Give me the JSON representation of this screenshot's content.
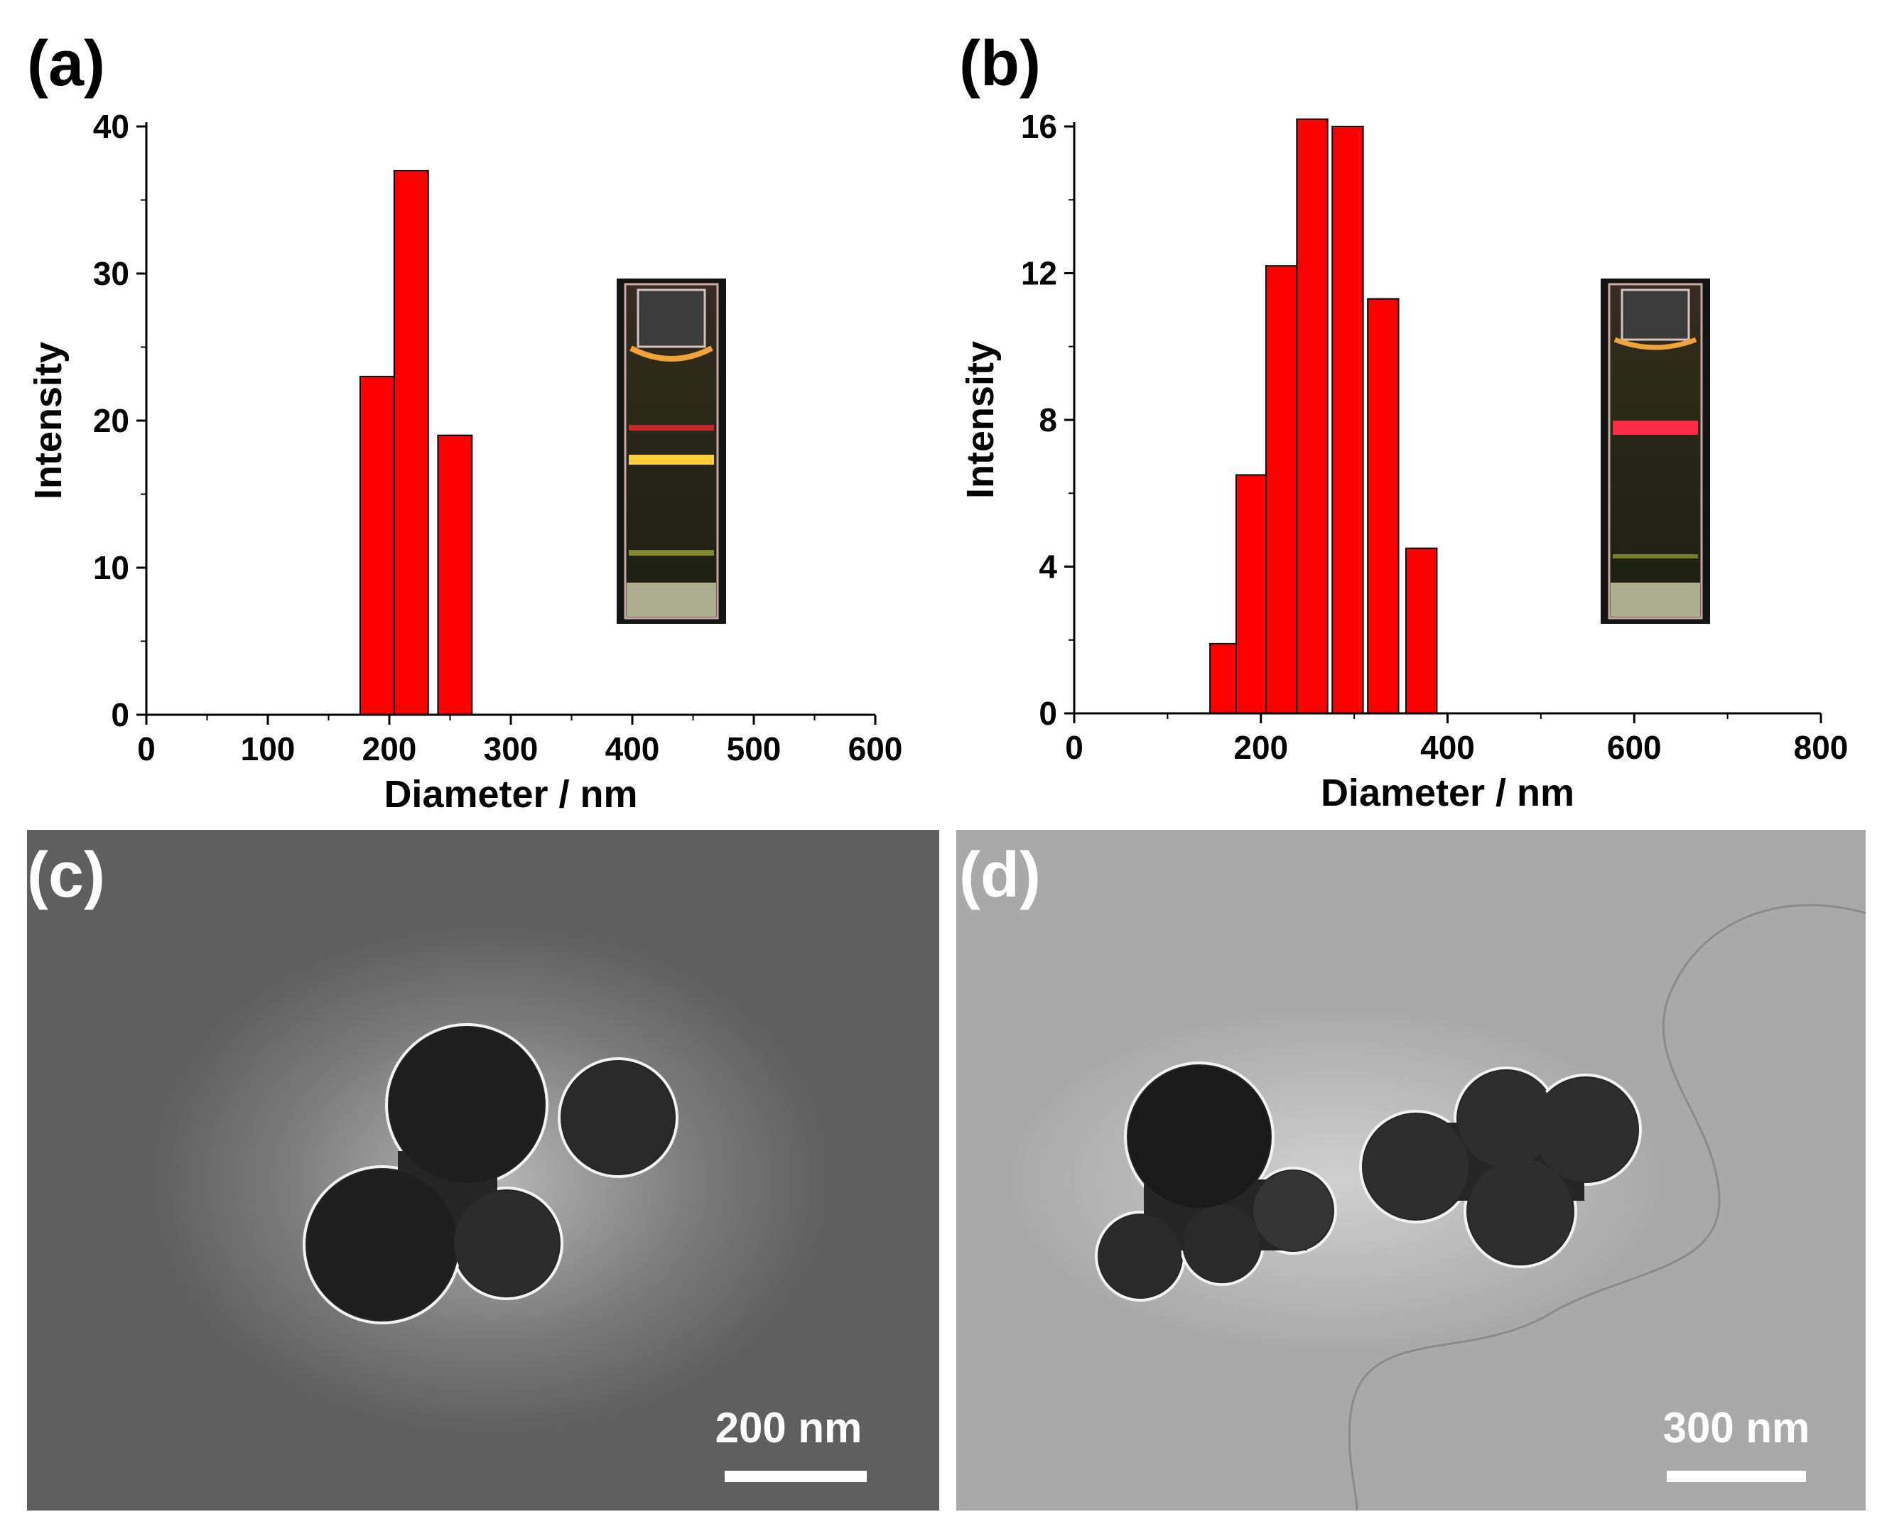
{
  "colors": {
    "bar_fill": "#ff0000",
    "bar_edge": "#000000",
    "axis": "#000000",
    "tem_background_c": "#5f5f5f",
    "tem_background_d": "#a9a9a9",
    "particle": "#262626",
    "scale_bar": "#ffffff"
  },
  "chart_data": [
    {
      "panel": "(a)",
      "type": "bar",
      "xlabel": "Diameter / nm",
      "ylabel": "Intensity",
      "xlim": [
        0,
        600
      ],
      "ylim": [
        0,
        40
      ],
      "xticks": [
        0,
        100,
        200,
        300,
        400,
        500,
        600
      ],
      "yticks": [
        0,
        10,
        20,
        30,
        40
      ],
      "bin_width": 28,
      "bins": [
        {
          "x": 190,
          "value": 23
        },
        {
          "x": 218,
          "value": 37
        },
        {
          "x": 254,
          "value": 19
        }
      ],
      "inset": "photo of cuvette showing red laser beam path (Tyndall effect)"
    },
    {
      "panel": "(b)",
      "type": "bar",
      "xlabel": "Diameter / nm",
      "ylabel": "Intensity",
      "xlim": [
        0,
        800
      ],
      "ylim": [
        0,
        16
      ],
      "xticks": [
        0,
        200,
        400,
        600,
        800
      ],
      "yticks": [
        0,
        4,
        8,
        12,
        16
      ],
      "bin_width": 33,
      "bins": [
        {
          "x": 162,
          "value": 1.9
        },
        {
          "x": 190,
          "value": 6.5
        },
        {
          "x": 222,
          "value": 12.2
        },
        {
          "x": 255,
          "value": 16.2
        },
        {
          "x": 293,
          "value": 16.0
        },
        {
          "x": 331,
          "value": 11.3
        },
        {
          "x": 372,
          "value": 4.5
        }
      ],
      "inset": "photo of cuvette showing red laser beam path (Tyndall effect)"
    }
  ],
  "panels": {
    "c": {
      "label": "(c)",
      "scale_bar": "200 nm"
    },
    "d": {
      "label": "(d)",
      "scale_bar": "300 nm"
    }
  }
}
